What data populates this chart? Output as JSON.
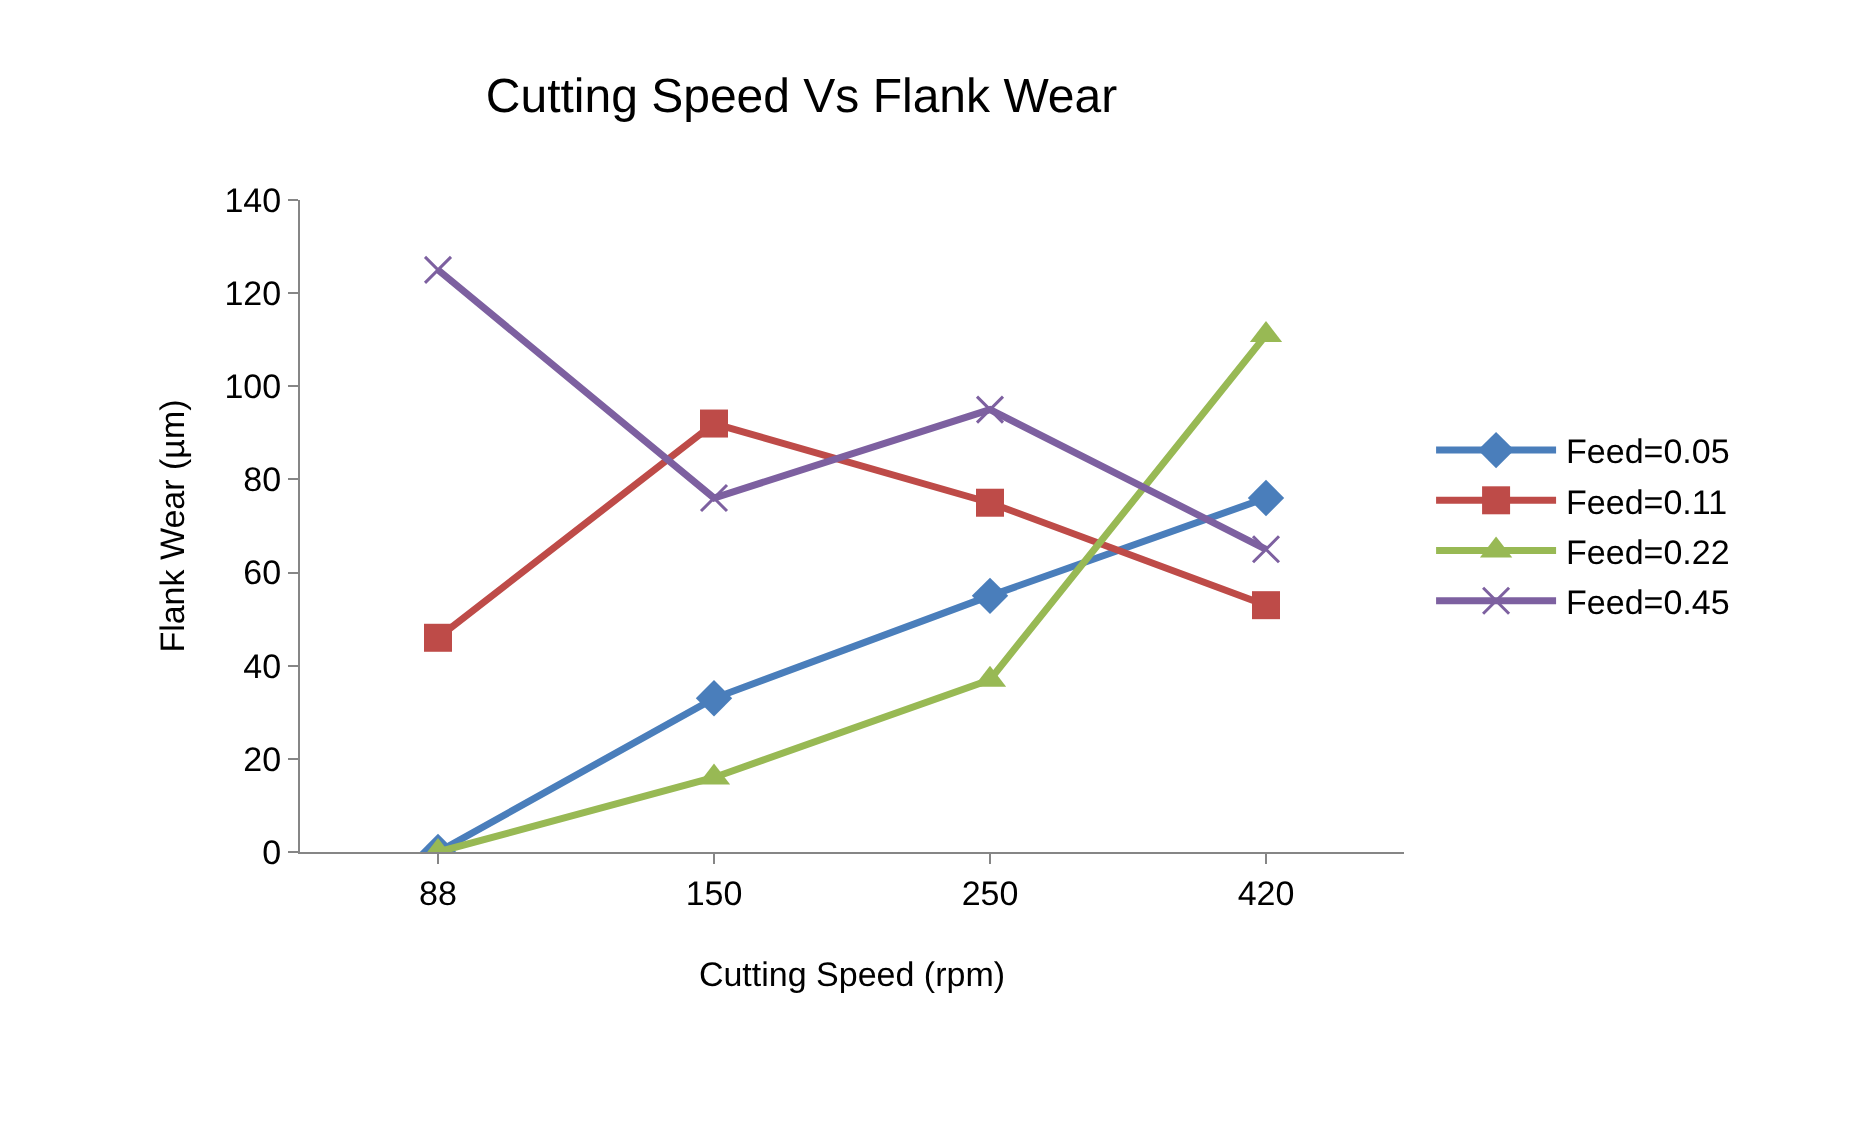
{
  "chart_data": {
    "type": "line",
    "title": "Cutting Speed Vs Flank Wear",
    "xlabel": "Cutting Speed (rpm)",
    "ylabel": "Flank Wear (µm)",
    "categories": [
      "88",
      "150",
      "250",
      "420"
    ],
    "series": [
      {
        "name": "Feed=0.05",
        "color": "#4a7ebb",
        "marker": "diamond",
        "values": [
          0,
          33,
          55,
          76
        ]
      },
      {
        "name": "Feed=0.11",
        "color": "#be4b48",
        "marker": "square",
        "values": [
          46,
          92,
          75,
          53
        ]
      },
      {
        "name": "Feed=0.22",
        "color": "#98b954",
        "marker": "triangle",
        "values": [
          0,
          16,
          37,
          111
        ]
      },
      {
        "name": "Feed=0.45",
        "color": "#7d60a0",
        "marker": "cross",
        "values": [
          125,
          76,
          95,
          65
        ]
      }
    ],
    "ylim": [
      0,
      140
    ],
    "yticks": [
      0,
      20,
      40,
      60,
      80,
      100,
      120,
      140
    ],
    "legend": "right",
    "line_style": "solid"
  }
}
